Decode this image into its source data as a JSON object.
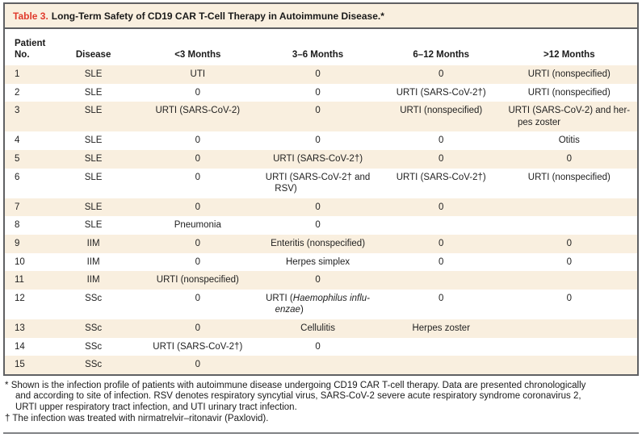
{
  "title": {
    "label": "Table 3.",
    "text": "Long-Term Safety of CD19 CAR T-Cell Therapy in Autoimmune Disease.*"
  },
  "table": {
    "columns": [
      {
        "label": "Patient\nNo.",
        "align": "left"
      },
      {
        "label": "Disease",
        "align": "center"
      },
      {
        "label": "<3 Months",
        "align": "center"
      },
      {
        "label": "3–6 Months",
        "align": "center"
      },
      {
        "label": "6–12 Months",
        "align": "center"
      },
      {
        "label": ">12 Months",
        "align": "center"
      }
    ],
    "rows": [
      [
        "1",
        "SLE",
        "UTI",
        "0",
        "0",
        "URTI (nonspecified)"
      ],
      [
        "2",
        "SLE",
        "0",
        "0",
        "URTI (SARS-CoV-2†)",
        "URTI (nonspecified)"
      ],
      [
        "3",
        "SLE",
        "URTI (SARS-CoV-2)",
        "0",
        "URTI (nonspecified)",
        "URTI (SARS-CoV-2) and her-\npes zoster"
      ],
      [
        "4",
        "SLE",
        "0",
        "0",
        "0",
        "Otitis"
      ],
      [
        "5",
        "SLE",
        "0",
        "URTI (SARS-CoV-2†)",
        "0",
        "0"
      ],
      [
        "6",
        "SLE",
        "0",
        "URTI (SARS-CoV-2† and\nRSV)",
        "URTI (SARS-CoV-2†)",
        "URTI (nonspecified)"
      ],
      [
        "7",
        "SLE",
        "0",
        "0",
        "0",
        ""
      ],
      [
        "8",
        "SLE",
        "Pneumonia",
        "0",
        "",
        ""
      ],
      [
        "9",
        "IIM",
        "0",
        "Enteritis (nonspecified)",
        "0",
        "0"
      ],
      [
        "10",
        "IIM",
        "0",
        "Herpes simplex",
        "0",
        "0"
      ],
      [
        "11",
        "IIM",
        "URTI (nonspecified)",
        "0",
        "",
        ""
      ],
      [
        "12",
        "SSc",
        "0",
        "URTI (*Haemophilus influ-*\n*enzae*)",
        "0",
        "0"
      ],
      [
        "13",
        "SSc",
        "0",
        "Cellulitis",
        "Herpes zoster",
        ""
      ],
      [
        "14",
        "SSc",
        "URTI (SARS-CoV-2†)",
        "0",
        "",
        ""
      ],
      [
        "15",
        "SSc",
        "0",
        "",
        "",
        ""
      ]
    ]
  },
  "footnotes": [
    {
      "marker": "*",
      "text": "Shown is the infection profile of patients with autoimmune disease undergoing CD19 CAR T-cell therapy. Data are presented chronologically\nand according to site of infection. RSV denotes respiratory syncytial virus, SARS-CoV-2 severe acute respiratory syndrome coronavirus 2,\nURTI upper respiratory tract infection, and UTI urinary tract infection."
    },
    {
      "marker": "†",
      "text": "The infection was treated with nirmatrelvir–ritonavir (Paxlovid)."
    }
  ],
  "colors": {
    "accent_red": "#e03a2c",
    "stripe_cream": "#f9efdf",
    "border_gray": "#5f6063",
    "rule_gray": "#808285"
  }
}
